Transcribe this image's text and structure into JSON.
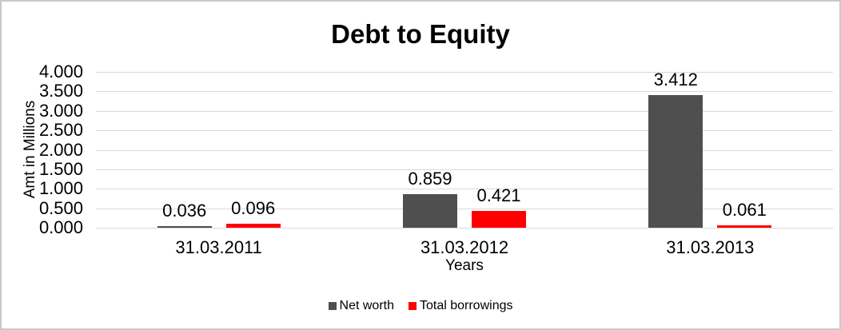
{
  "window": {
    "background_color": "#ffffff",
    "border_color": "#c9c9c9"
  },
  "chart_data": {
    "type": "bar",
    "title": "Debt to Equity",
    "xlabel": "Years",
    "ylabel": "Amt in Millions",
    "categories": [
      "31.03.2011",
      "31.03.2012",
      "31.03.2013"
    ],
    "series": [
      {
        "name": "Net worth",
        "color": "#4f4f4f",
        "values": [
          0.036,
          0.859,
          3.412
        ],
        "data_labels": [
          "0.036",
          "0.859",
          "3.412"
        ]
      },
      {
        "name": "Total borrowings",
        "color": "#ff0000",
        "values": [
          0.096,
          0.421,
          0.061
        ],
        "data_labels": [
          "0.096",
          "0.421",
          "0.061"
        ]
      }
    ],
    "ylim": [
      0,
      4
    ],
    "y_tick_step": 0.5,
    "y_tick_labels": [
      "4.000",
      "3.500",
      "3.000",
      "2.500",
      "2.000",
      "1.500",
      "1.000",
      "0.500",
      "0.000"
    ],
    "grid": "horizontal",
    "gridline_color": "#d9d9d9",
    "text_color": "#000000",
    "legend_position": "bottom",
    "legend_entries": [
      "Net worth",
      "Total borrowings"
    ]
  }
}
